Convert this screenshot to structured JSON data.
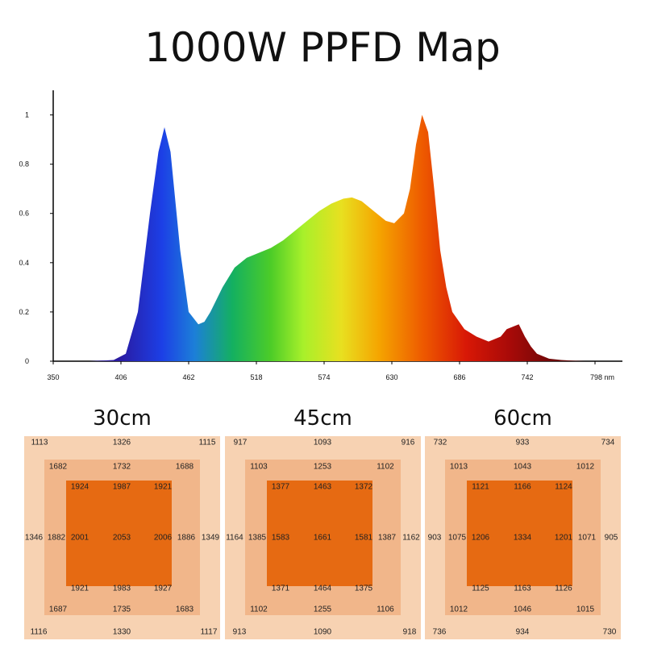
{
  "title": "1000W PPFD Map",
  "chart_data": {
    "type": "area",
    "xlabel_unit": "nm",
    "xlim": [
      350,
      798
    ],
    "ylim": [
      0,
      1.1
    ],
    "x_ticks": [
      "350",
      "406",
      "462",
      "518",
      "574",
      "630",
      "686",
      "742",
      "798 nm"
    ],
    "y_ticks": [
      "0",
      "0.2",
      "0.4",
      "0.6",
      "0.8",
      "1"
    ],
    "series": [
      {
        "x": [
          350,
          380,
          400,
          410,
          420,
          430,
          437,
          442,
          447,
          455,
          462,
          470,
          475,
          480,
          490,
          500,
          510,
          520,
          530,
          540,
          550,
          560,
          570,
          580,
          590,
          597,
          605,
          615,
          625,
          632,
          640,
          645,
          650,
          655,
          660,
          665,
          670,
          675,
          680,
          690,
          700,
          710,
          720,
          725,
          735,
          740,
          745,
          750,
          760,
          770,
          780,
          790
        ],
        "values": [
          0.0,
          0.0,
          0.005,
          0.03,
          0.2,
          0.6,
          0.85,
          0.95,
          0.85,
          0.45,
          0.2,
          0.15,
          0.16,
          0.2,
          0.3,
          0.38,
          0.42,
          0.44,
          0.46,
          0.49,
          0.53,
          0.57,
          0.61,
          0.64,
          0.66,
          0.665,
          0.65,
          0.61,
          0.57,
          0.56,
          0.6,
          0.7,
          0.88,
          1.0,
          0.93,
          0.7,
          0.45,
          0.3,
          0.2,
          0.13,
          0.1,
          0.08,
          0.1,
          0.13,
          0.15,
          0.1,
          0.06,
          0.03,
          0.01,
          0.005,
          0.002,
          0.0
        ]
      }
    ]
  },
  "maps": [
    {
      "title": "30cm",
      "outer": [
        "1113",
        "1326",
        "1115",
        "1346",
        "1349",
        "1116",
        "1330",
        "1117"
      ],
      "middle": [
        "1682",
        "1732",
        "1688",
        "1882",
        "1886",
        "1687",
        "1735",
        "1683"
      ],
      "inner": [
        "1924",
        "1987",
        "1921",
        "2001",
        "2053",
        "2006",
        "1921",
        "1983",
        "1927"
      ]
    },
    {
      "title": "45cm",
      "outer": [
        "917",
        "1093",
        "916",
        "1164",
        "1162",
        "913",
        "1090",
        "918"
      ],
      "middle": [
        "1103",
        "1253",
        "1102",
        "1385",
        "1387",
        "1102",
        "1255",
        "1106"
      ],
      "inner": [
        "1377",
        "1463",
        "1372",
        "1583",
        "1661",
        "1581",
        "1371",
        "1464",
        "1375"
      ]
    },
    {
      "title": "60cm",
      "outer": [
        "732",
        "933",
        "734",
        "903",
        "905",
        "736",
        "934",
        "730"
      ],
      "middle": [
        "1013",
        "1043",
        "1012",
        "1075",
        "1071",
        "1012",
        "1046",
        "1015"
      ],
      "inner": [
        "1121",
        "1166",
        "1124",
        "1206",
        "1334",
        "1201",
        "1125",
        "1163",
        "1126"
      ]
    }
  ]
}
